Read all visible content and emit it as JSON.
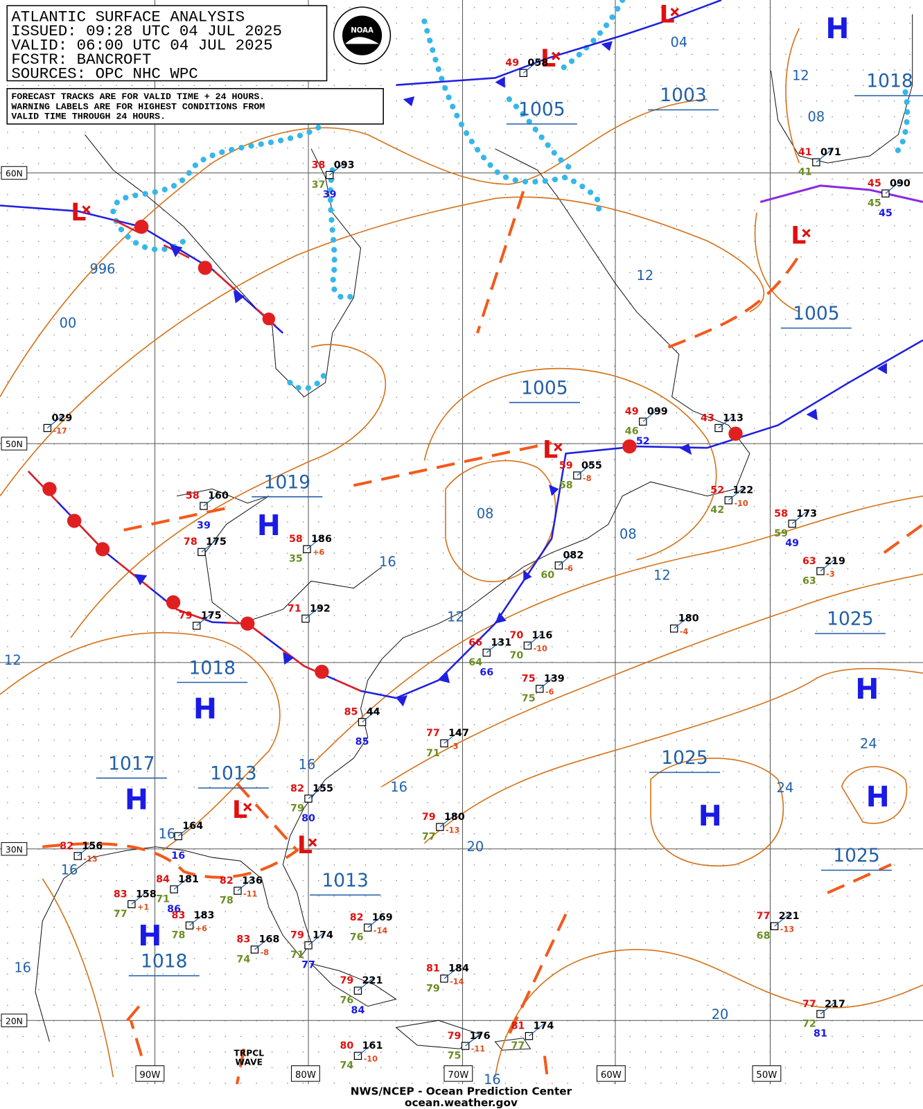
{
  "header": {
    "lines": [
      "ATLANTIC SURFACE ANALYSIS",
      "ISSUED: 09:28 UTC 04 JUL 2025",
      "VALID:  06:00 UTC 04 JUL 2025",
      "FCSTR:  BANCROFT",
      "SOURCES: OPC NHC WPC"
    ],
    "logo": "NOAA"
  },
  "note": [
    "FORECAST TRACKS ARE FOR VALID TIME + 24 HOURS.",
    "WARNING LABELS ARE FOR HIGHEST CONDITIONS FROM",
    "VALID TIME THROUGH 24 HOURS."
  ],
  "grid": {
    "lat_labels": [
      "60N",
      "50N",
      "30N",
      "20N"
    ],
    "lon_labels": [
      "90W",
      "80W",
      "70W",
      "60W",
      "50W"
    ]
  },
  "isobar_labels": [
    "04",
    "1003",
    "1005",
    "12",
    "08",
    "1018",
    "996",
    "00",
    "12",
    "1005",
    "1005",
    "1019",
    "08",
    "08",
    "16",
    "12",
    "12",
    "1025",
    "1018",
    "24",
    "1017",
    "1013",
    "16",
    "16",
    "24",
    "1025",
    "20",
    "1013",
    "1025",
    "16",
    "16",
    "1018",
    "20",
    "16",
    "12",
    "16"
  ],
  "centers": [
    "H",
    "H",
    "H",
    "H",
    "H",
    "H",
    "H",
    "H",
    "L",
    "L",
    "L",
    "L",
    "L",
    "L",
    "L"
  ],
  "stations": [
    {
      "pressure": "093",
      "temp": "38",
      "dew": "37",
      "extra": "39"
    },
    {
      "pressure": "058",
      "temp": "49"
    },
    {
      "pressure": "071",
      "temp": "41",
      "dew": "41"
    },
    {
      "pressure": "090",
      "temp": "45",
      "dew": "45",
      "extra": "45"
    },
    {
      "pressure": "029",
      "tend": "-17"
    },
    {
      "pressure": "160",
      "temp": "58",
      "extra": "39"
    },
    {
      "pressure": "175",
      "temp": "78"
    },
    {
      "pressure": "186",
      "temp": "58",
      "dew": "35",
      "tend": "+6"
    },
    {
      "pressure": "099",
      "temp": "49",
      "dew": "46",
      "extra": "52"
    },
    {
      "pressure": "113",
      "temp": "43"
    },
    {
      "pressure": "055",
      "temp": "59",
      "dew": "58",
      "tend": "-8"
    },
    {
      "pressure": "122",
      "temp": "52",
      "dew": "42",
      "tend": "-10"
    },
    {
      "pressure": "173",
      "temp": "58",
      "dew": "59",
      "extra": "49"
    },
    {
      "pressure": "082",
      "dew": "60",
      "tend": "-6"
    },
    {
      "pressure": "219",
      "temp": "63",
      "dew": "63",
      "tend": "-3"
    },
    {
      "pressure": "175",
      "temp": "79"
    },
    {
      "pressure": "192",
      "temp": "71"
    },
    {
      "pressure": "180",
      "tend": "-4"
    },
    {
      "pressure": "131",
      "temp": "66",
      "dew": "64",
      "extra": "66"
    },
    {
      "pressure": "116",
      "temp": "70",
      "dew": "70",
      "tend": "-10"
    },
    {
      "pressure": "139",
      "temp": "75",
      "dew": "75",
      "tend": "-6"
    },
    {
      "pressure": "44",
      "temp": "85",
      "extra": "85"
    },
    {
      "pressure": "147",
      "temp": "77",
      "dew": "71",
      "tend": "-3"
    },
    {
      "pressure": "155",
      "temp": "82",
      "dew": "79",
      "extra": "80"
    },
    {
      "pressure": "180",
      "temp": "79",
      "dew": "77",
      "tend": "-13"
    },
    {
      "pressure": "181",
      "temp": "84",
      "dew": "71",
      "extra": "86"
    },
    {
      "pressure": "136",
      "temp": "82",
      "dew": "78",
      "tend": "-11"
    },
    {
      "pressure": "158",
      "temp": "83",
      "dew": "77",
      "tend": "+1"
    },
    {
      "pressure": "183",
      "temp": "83",
      "dew": "78",
      "tend": "+6"
    },
    {
      "pressure": "169",
      "temp": "82",
      "dew": "76",
      "tend": "-14"
    },
    {
      "pressure": "168",
      "temp": "83",
      "dew": "74",
      "tend": "-8"
    },
    {
      "pressure": "174",
      "temp": "79",
      "dew": "71",
      "extra": "77"
    },
    {
      "pressure": "184",
      "temp": "81",
      "dew": "79",
      "tend": "-14"
    },
    {
      "pressure": "221",
      "temp": "79",
      "dew": "76",
      "extra": "84"
    },
    {
      "pressure": "221",
      "temp": "77",
      "dew": "68",
      "tend": "-13"
    },
    {
      "pressure": "217",
      "temp": "77",
      "dew": "72",
      "extra": "81"
    },
    {
      "pressure": "174",
      "temp": "81",
      "dew": "77"
    },
    {
      "pressure": "176",
      "temp": "79",
      "dew": "75",
      "tend": "-11"
    },
    {
      "pressure": "161",
      "temp": "80",
      "dew": "74",
      "tend": "-10"
    },
    {
      "pressure": "156",
      "temp": "82",
      "tend": "-13"
    },
    {
      "pressure": "164",
      "extra": "16"
    }
  ],
  "wave_label": [
    "TRPCL",
    "WAVE"
  ],
  "footer": [
    "NWS/NCEP - Ocean Prediction Center",
    "ocean.weather.gov"
  ]
}
